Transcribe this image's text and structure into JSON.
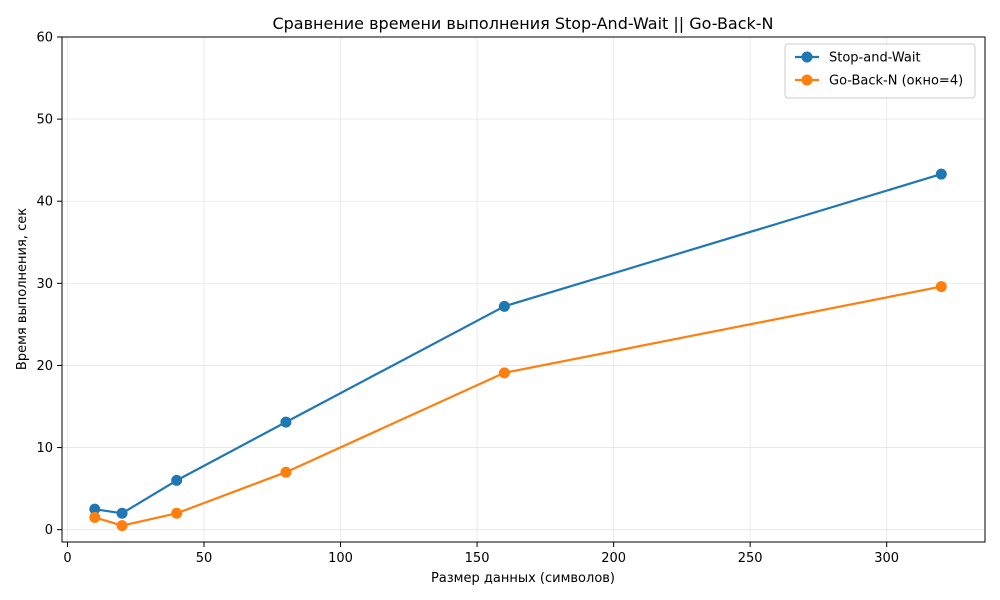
{
  "chart_data": {
    "type": "line",
    "title": "Сравнение времени выполнения Stop-And-Wait || Go-Back-N",
    "xlabel": "Размер данных (символов)",
    "ylabel": "Время выполнения, сек",
    "xlim": [
      -2,
      336
    ],
    "ylim": [
      -1.5,
      60
    ],
    "xticks": [
      0,
      50,
      100,
      150,
      200,
      250,
      300
    ],
    "yticks": [
      0,
      10,
      20,
      30,
      40,
      50,
      60
    ],
    "grid": true,
    "legend_position": "top-right",
    "x": [
      10,
      20,
      40,
      80,
      160,
      320
    ],
    "series": [
      {
        "name": "Stop-and-Wait",
        "color": "#1f77b4",
        "values": [
          2.5,
          2.0,
          6.0,
          13.1,
          27.2,
          43.3
        ]
      },
      {
        "name": "Go-Back-N (окно=4)",
        "color": "#ff7f0e",
        "values": [
          1.5,
          0.5,
          2.0,
          7.0,
          19.1,
          29.6
        ]
      }
    ]
  }
}
